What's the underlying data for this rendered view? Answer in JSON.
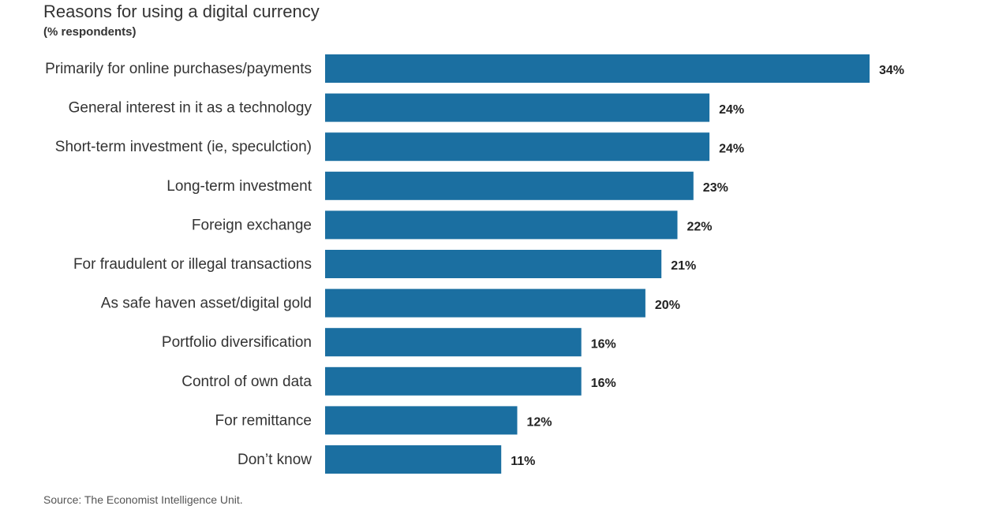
{
  "chart_data": {
    "type": "bar",
    "orientation": "horizontal",
    "title": "Reasons for using a digital currency",
    "subtitle": "(% respondents)",
    "categories": [
      "Primarily for online purchases/payments",
      "General interest in it as a technology",
      "Short-term investment (ie, speculction)",
      "Long-term investment",
      "Foreign exchange",
      "For fraudulent or illegal transactions",
      "As safe haven asset/digital gold",
      "Portfolio diversification",
      "Control of own data",
      "For remittance",
      "Don’t know"
    ],
    "values": [
      34,
      24,
      24,
      23,
      22,
      21,
      20,
      16,
      16,
      12,
      11
    ],
    "value_labels": [
      "34%",
      "24%",
      "24%",
      "23%",
      "22%",
      "21%",
      "20%",
      "16%",
      "16%",
      "12%",
      "11%"
    ],
    "unit": "%",
    "xlim": [
      0,
      34
    ],
    "grid": false,
    "bar_color": "#1b6fa1",
    "source": "Source: The Economist Intelligence Unit."
  }
}
